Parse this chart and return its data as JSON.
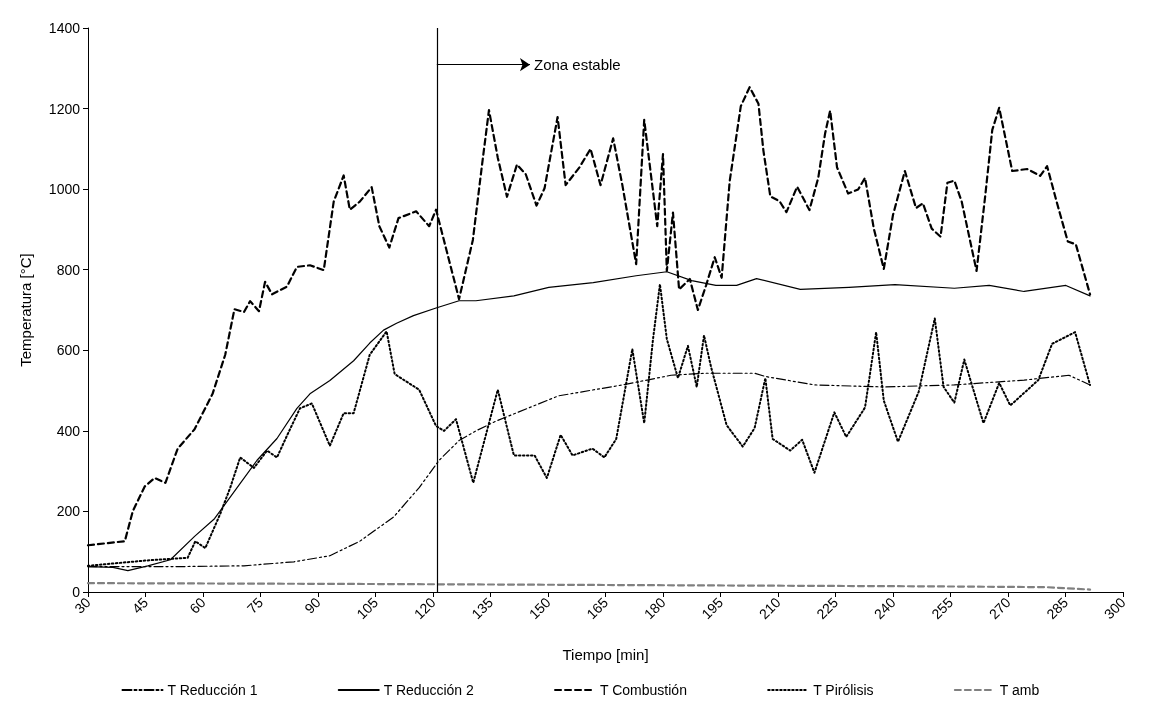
{
  "chart_data": {
    "type": "line",
    "xlabel": "Tiempo [min]",
    "ylabel": "Temperatura [°C]",
    "xlim": [
      30,
      300
    ],
    "xticks": [
      30,
      45,
      60,
      75,
      90,
      105,
      120,
      135,
      150,
      165,
      180,
      195,
      210,
      225,
      240,
      255,
      270,
      285,
      300
    ],
    "ylim": [
      0,
      1400
    ],
    "yticks": [
      0,
      200,
      400,
      600,
      800,
      1000,
      1200,
      1400
    ],
    "grid": false,
    "legend": "bottom",
    "marker": "none",
    "ref_lines": [
      {
        "axis": "x",
        "value": 121,
        "color": "#000000",
        "line_style": "solid"
      }
    ],
    "annotations": [
      "Zona estable"
    ],
    "series": [
      {
        "name": "T Reducción 1",
        "color": "#000000",
        "line_style": "dashdot",
        "x": [
          30,
          53.4,
          70.7,
          83.7,
          93.1,
          100.9,
          109.7,
          116.4,
          121.6,
          126.8,
          131.2,
          136.4,
          152.8,
          169.4,
          182.1,
          191.2,
          203.9,
          206.7,
          219.5,
          237.6,
          256,
          274.2,
          285.9,
          291.4
        ],
        "values": [
          63,
          63,
          65,
          75,
          90,
          126,
          186,
          259,
          327,
          376,
          400,
          424,
          487,
          514,
          538,
          543,
          543,
          535,
          514,
          509,
          514,
          526,
          538,
          514
        ]
      },
      {
        "name": "T Reducción 2",
        "color": "#000000",
        "line_style": "solid",
        "x": [
          30,
          36.5,
          40.4,
          45.6,
          51.5,
          57.8,
          63,
          68.9,
          74.1,
          79.3,
          84.5,
          87.9,
          93.1,
          99.3,
          103.5,
          107.1,
          110.5,
          114.9,
          120.8,
          126.8,
          131.2,
          141.1,
          150.2,
          161.8,
          173,
          181,
          187.5,
          193.8,
          199.2,
          204.4,
          215.8,
          228.5,
          240.5,
          256,
          265.1,
          274.2,
          285.1,
          291.4
        ],
        "values": [
          63,
          61,
          53,
          65,
          80,
          138,
          182,
          259,
          327,
          381,
          456,
          492,
          525,
          574,
          618,
          650,
          667,
          686,
          705,
          723,
          723,
          735,
          756,
          768,
          785,
          795,
          773,
          761,
          761,
          778,
          751,
          756,
          763,
          754,
          761,
          746,
          761,
          735
        ]
      },
      {
        "name": "T Combustión",
        "color": "#000000",
        "line_style": "dashed",
        "x": [
          30,
          39.6,
          41.7,
          44.8,
          47.4,
          50.2,
          53.4,
          57.8,
          62.5,
          65.8,
          68.2,
          70.7,
          72.3,
          74.6,
          76.2,
          78,
          81.9,
          84.5,
          87.9,
          91.5,
          94.1,
          96.7,
          98.3,
          100.9,
          104,
          106,
          108.6,
          111,
          115.6,
          119,
          120.8,
          126.8,
          130.4,
          132.8,
          134.6,
          136.9,
          139.3,
          141.9,
          144.2,
          147,
          149.1,
          152.5,
          154.6,
          158.2,
          161.1,
          163.7,
          167,
          169.4,
          173,
          175.1,
          178.5,
          180,
          181,
          182.6,
          184.2,
          187,
          189.1,
          191.2,
          193.5,
          195.3,
          197.4,
          200.3,
          202.6,
          204.9,
          206.2,
          208,
          210.4,
          212.2,
          215,
          218.2,
          220.5,
          222.3,
          223.6,
          225.4,
          228.3,
          230.9,
          232.7,
          235,
          237.6,
          240,
          243.1,
          246,
          247.8,
          250.1,
          252.4,
          254.2,
          256,
          257.9,
          261.8,
          264.1,
          265.9,
          267.7,
          271.1,
          275,
          278.4,
          280.2,
          282.8,
          285.6,
          287.7,
          291.4
        ],
        "values": [
          116,
          126,
          201,
          262,
          283,
          271,
          356,
          404,
          492,
          589,
          702,
          695,
          722,
          697,
          770,
          739,
          758,
          807,
          811,
          799,
          969,
          1034,
          949,
          969,
          1005,
          908,
          855,
          928,
          945,
          908,
          949,
          727,
          874,
          1061,
          1196,
          1078,
          981,
          1061,
          1037,
          959,
          1002,
          1179,
          1010,
          1054,
          1100,
          1010,
          1126,
          1010,
          814,
          1172,
          908,
          1087,
          797,
          942,
          751,
          777,
          700,
          760,
          831,
          780,
          1020,
          1206,
          1253,
          1212,
          1095,
          982,
          970,
          943,
          1006,
          948,
          1028,
          1139,
          1195,
          1054,
          989,
          999,
          1028,
          902,
          802,
          936,
          1045,
          953,
          965,
          902,
          882,
          1016,
          1021,
          970,
          797,
          987,
          1147,
          1202,
          1045,
          1050,
          1033,
          1057,
          965,
          870,
          863,
          739
        ]
      },
      {
        "name": "T Pirólisis",
        "color": "#000000",
        "line_style": "dotted",
        "x": [
          30,
          44.8,
          56,
          58,
          60.6,
          64.5,
          67.1,
          69.7,
          73.3,
          76.7,
          79.3,
          81.9,
          85.3,
          88.4,
          93.1,
          96.7,
          99.3,
          103.5,
          107.9,
          110,
          116.4,
          120.8,
          122.9,
          126,
          130.5,
          136.9,
          141.1,
          146.5,
          149.7,
          153.3,
          156.4,
          161.6,
          164.7,
          167.8,
          172,
          175.1,
          177.4,
          179.2,
          181,
          183.9,
          186.5,
          188.8,
          190.7,
          192.5,
          196.6,
          200.8,
          203.9,
          206.7,
          208.6,
          213.2,
          216.3,
          219.5,
          224.7,
          227.8,
          232.7,
          235.6,
          237.6,
          241.3,
          246.7,
          250.9,
          253.2,
          256,
          258.6,
          263.6,
          267.7,
          270.6,
          277.9,
          281.5,
          287.5,
          291.4
        ],
        "values": [
          65,
          78,
          85,
          126,
          109,
          194,
          259,
          334,
          308,
          351,
          334,
          388,
          456,
          468,
          363,
          444,
          444,
          589,
          647,
          541,
          502,
          412,
          400,
          429,
          271,
          502,
          339,
          339,
          283,
          390,
          339,
          356,
          334,
          380,
          603,
          419,
          628,
          764,
          628,
          531,
          611,
          509,
          637,
          560,
          414,
          361,
          407,
          531,
          380,
          351,
          378,
          296,
          446,
          385,
          458,
          645,
          475,
          373,
          497,
          679,
          509,
          470,
          577,
          419,
          519,
          463,
          526,
          616,
          645,
          514
        ]
      },
      {
        "name": "T amb",
        "color": "#808080",
        "line_style": "dashed",
        "x": [
          30,
          100,
          150,
          200,
          250,
          280,
          291.4
        ],
        "values": [
          22,
          20,
          18,
          16,
          14,
          12,
          6
        ]
      }
    ]
  }
}
